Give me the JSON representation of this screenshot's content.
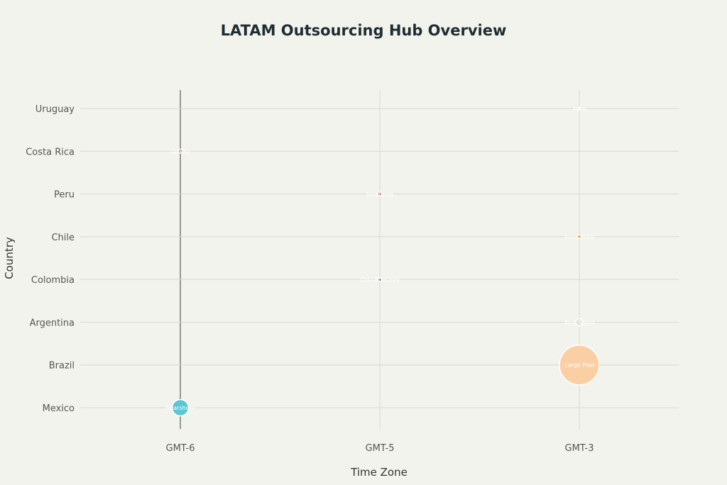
{
  "chart_data": {
    "type": "scatter",
    "subtype": "bubble",
    "title": "LATAM Outsourcing Hub Overview",
    "xlabel": "Time Zone",
    "ylabel": "Country",
    "x_categories": [
      "GMT-6",
      "GMT-5",
      "GMT-3"
    ],
    "y_categories": [
      "Mexico",
      "Brazil",
      "Argentina",
      "Colombia",
      "Chile",
      "Peru",
      "Costa Rica",
      "Uruguay"
    ],
    "grid": true,
    "legend": "none",
    "points": [
      {
        "country": "Mexico",
        "timezone": "GMT-6",
        "label": "Nearshore",
        "size": 85,
        "color": "#5bc6d6"
      },
      {
        "country": "Brazil",
        "timezone": "GMT-3",
        "label": "Large Pool",
        "size": 500,
        "color": "#fbcfa4"
      },
      {
        "country": "Argentina",
        "timezone": "GMT-3",
        "label": "Tech Talent",
        "size": 18,
        "color": "#e6e1d3"
      },
      {
        "country": "Colombia",
        "timezone": "GMT-5",
        "label": "Cost-Effective",
        "size": 5,
        "color": "#6f7f9e"
      },
      {
        "country": "Chile",
        "timezone": "GMT-3",
        "label": "Innovation",
        "size": 5,
        "color": "#e3a041"
      },
      {
        "country": "Peru",
        "timezone": "GMT-5",
        "label": "Emerging",
        "size": 5,
        "color": "#c07f80"
      },
      {
        "country": "Costa Rica",
        "timezone": "GMT-6",
        "label": "Quality",
        "size": 5,
        "color": "#a86b5c"
      },
      {
        "country": "Uruguay",
        "timezone": "GMT-3",
        "label": "Agile",
        "size": 1,
        "color": "#e8e8e2"
      }
    ]
  }
}
